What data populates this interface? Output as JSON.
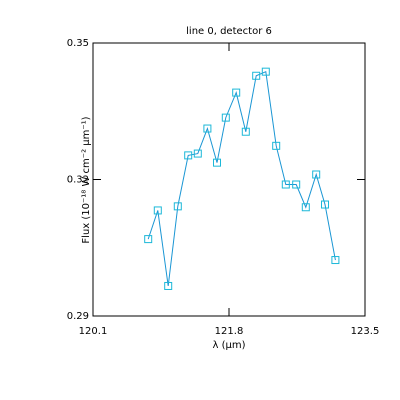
{
  "chart_data": {
    "type": "line",
    "title": "line 0, detector 6",
    "xlabel": "λ (μm)",
    "ylabel": "Flux (10⁻¹⁸ W cm⁻² μm⁻¹)",
    "x": [
      120.79,
      120.91,
      121.04,
      121.16,
      121.29,
      121.41,
      121.53,
      121.65,
      121.76,
      121.89,
      122.01,
      122.14,
      122.26,
      122.39,
      122.51,
      122.64,
      122.76,
      122.89,
      123.0,
      123.13
    ],
    "series": [
      {
        "color": "#1a96d4",
        "marker_color": "#1cb8d8",
        "values": [
          0.3069,
          0.3132,
          0.2966,
          0.3141,
          0.3253,
          0.3257,
          0.3312,
          0.3237,
          0.3336,
          0.3391,
          0.3305,
          0.3428,
          0.3437,
          0.3274,
          0.3189,
          0.3189,
          0.3139,
          0.3211,
          0.3145,
          0.3023
        ]
      }
    ],
    "xlim": [
      120.1,
      123.5
    ],
    "xticks": [
      120.1,
      121.8,
      123.5
    ],
    "ylim": [
      0.29,
      0.35
    ],
    "yticks": [
      0.29,
      0.32,
      0.35
    ]
  }
}
